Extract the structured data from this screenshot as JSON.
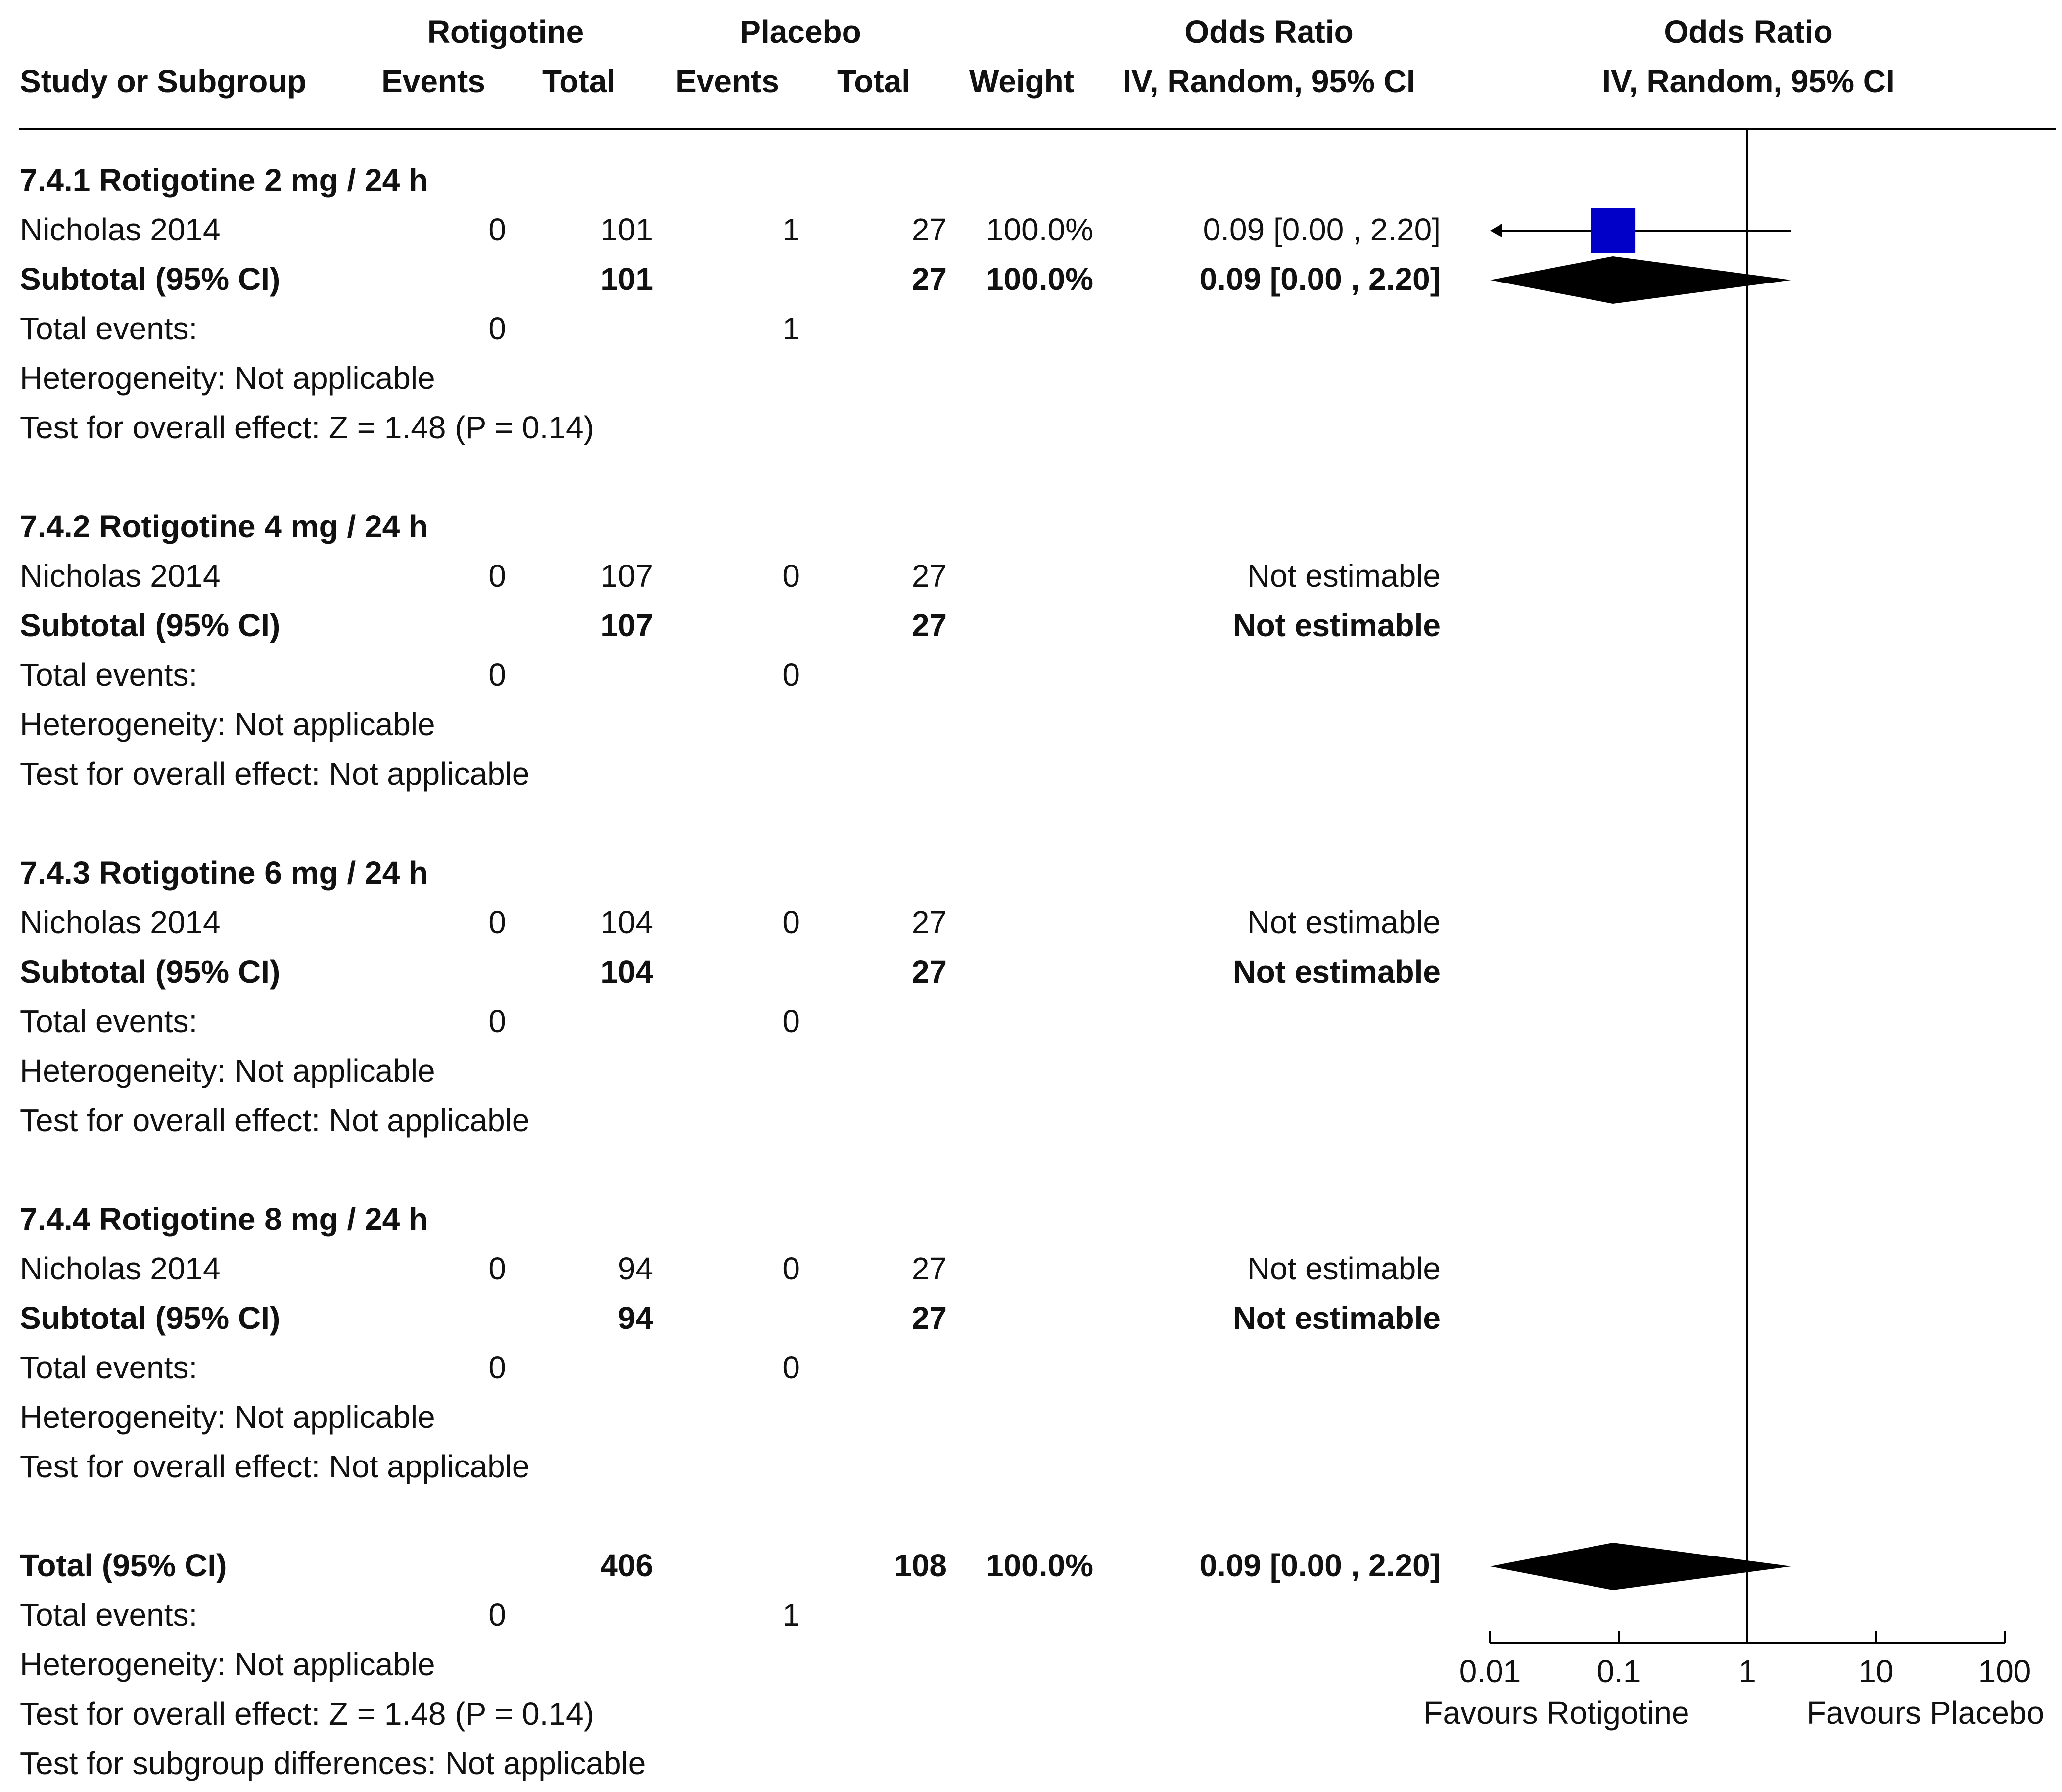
{
  "header": {
    "group1": "Rotigotine",
    "group2": "Placebo",
    "or_text_title": "Odds Ratio",
    "or_plot_title": "Odds Ratio",
    "col_study": "Study or Subgroup",
    "col_events1": "Events",
    "col_total1": "Total",
    "col_events2": "Events",
    "col_total2": "Total",
    "col_weight": "Weight",
    "or_text_method": "IV, Random, 95% CI",
    "or_plot_method": "IV, Random, 95% CI"
  },
  "subgroups": [
    {
      "title": "7.4.1 Rotigotine 2 mg / 24 h",
      "study": {
        "name": "Nicholas 2014",
        "e1": "0",
        "t1": "101",
        "e2": "1",
        "t2": "27",
        "weight": "100.0%",
        "or": "0.09 [0.00 , 2.20]"
      },
      "subtotal": {
        "label": "Subtotal (95% CI)",
        "t1": "101",
        "t2": "27",
        "weight": "100.0%",
        "or": "0.09 [0.00 , 2.20]"
      },
      "events": {
        "label": "Total events:",
        "e1": "0",
        "e2": "1"
      },
      "heterogeneity": "Heterogeneity: Not applicable",
      "effect": "Test for overall effect: Z = 1.48 (P = 0.14)"
    },
    {
      "title": "7.4.2 Rotigotine 4 mg / 24 h",
      "study": {
        "name": "Nicholas 2014",
        "e1": "0",
        "t1": "107",
        "e2": "0",
        "t2": "27",
        "weight": "",
        "or": "Not estimable"
      },
      "subtotal": {
        "label": "Subtotal (95% CI)",
        "t1": "107",
        "t2": "27",
        "weight": "",
        "or": "Not estimable"
      },
      "events": {
        "label": "Total events:",
        "e1": "0",
        "e2": "0"
      },
      "heterogeneity": "Heterogeneity: Not applicable",
      "effect": "Test for overall effect: Not applicable"
    },
    {
      "title": "7.4.3 Rotigotine 6 mg / 24 h",
      "study": {
        "name": "Nicholas 2014",
        "e1": "0",
        "t1": "104",
        "e2": "0",
        "t2": "27",
        "weight": "",
        "or": "Not estimable"
      },
      "subtotal": {
        "label": "Subtotal (95% CI)",
        "t1": "104",
        "t2": "27",
        "weight": "",
        "or": "Not estimable"
      },
      "events": {
        "label": "Total events:",
        "e1": "0",
        "e2": "0"
      },
      "heterogeneity": "Heterogeneity: Not applicable",
      "effect": "Test for overall effect: Not applicable"
    },
    {
      "title": "7.4.4 Rotigotine 8 mg / 24 h",
      "study": {
        "name": "Nicholas 2014",
        "e1": "0",
        "t1": "94",
        "e2": "0",
        "t2": "27",
        "weight": "",
        "or": "Not estimable"
      },
      "subtotal": {
        "label": "Subtotal (95% CI)",
        "t1": "94",
        "t2": "27",
        "weight": "",
        "or": "Not estimable"
      },
      "events": {
        "label": "Total events:",
        "e1": "0",
        "e2": "0"
      },
      "heterogeneity": "Heterogeneity: Not applicable",
      "effect": "Test for overall effect: Not applicable"
    }
  ],
  "total": {
    "label": "Total (95% CI)",
    "t1": "406",
    "t2": "108",
    "weight": "100.0%",
    "or": "0.09 [0.00 , 2.20]",
    "events": {
      "label": "Total events:",
      "e1": "0",
      "e2": "1"
    },
    "heterogeneity": "Heterogeneity: Not applicable",
    "effect": "Test for overall effect: Z = 1.48 (P = 0.14)",
    "subgroup_diff": "Test for subgroup differences: Not applicable"
  },
  "axis": {
    "ticks": [
      "0.01",
      "0.1",
      "1",
      "10",
      "100"
    ],
    "favours_left": "Favours Rotigotine",
    "favours_right": "Favours Placebo"
  },
  "colors": {
    "study_marker": "#0000c8",
    "summary_diamond": "#000000",
    "lines": "#000000"
  },
  "chart_data": {
    "type": "forest",
    "scale": "log",
    "xlim": [
      0.01,
      100
    ],
    "null_line": 1,
    "ticks": [
      0.01,
      0.1,
      1,
      10,
      100
    ],
    "estimates": [
      {
        "subgroup": "7.4.1 Rotigotine 2 mg / 24 h",
        "study": "Nicholas 2014",
        "or": 0.09,
        "lower": 0.0,
        "upper": 2.2,
        "weight": 100.0
      },
      {
        "subgroup": "7.4.1 Rotigotine 2 mg / 24 h",
        "study": "Subtotal (95% CI)",
        "or": 0.09,
        "lower": 0.0,
        "upper": 2.2,
        "summary": true
      },
      {
        "study": "Total (95% CI)",
        "or": 0.09,
        "lower": 0.0,
        "upper": 2.2,
        "summary": true
      }
    ]
  }
}
